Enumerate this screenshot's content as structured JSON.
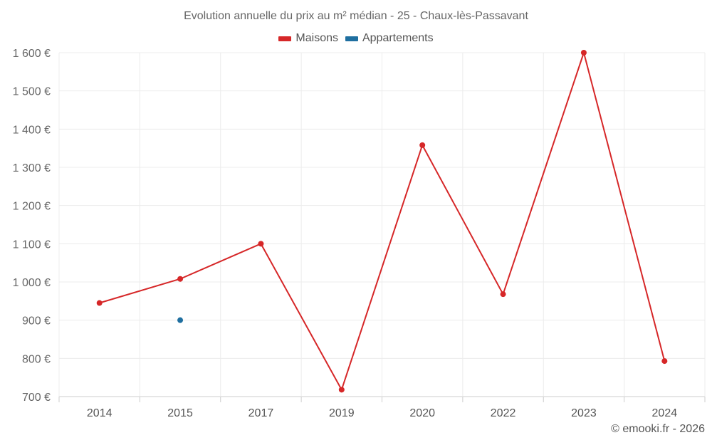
{
  "chart_data": {
    "type": "line",
    "title": "Evolution annuelle du prix au m² médian - 25 - Chaux-lès-Passavant",
    "categories": [
      "2014",
      "2015",
      "2017",
      "2019",
      "2020",
      "2022",
      "2023",
      "2024"
    ],
    "series": [
      {
        "name": "Maisons",
        "color": "#d62728",
        "values": [
          945,
          1008,
          1100,
          718,
          1358,
          968,
          1600,
          793
        ]
      },
      {
        "name": "Appartements",
        "color": "#1f6fa0",
        "values": [
          null,
          900,
          null,
          null,
          null,
          null,
          null,
          null
        ]
      }
    ],
    "y_ticks": [
      700,
      800,
      900,
      1000,
      1100,
      1200,
      1300,
      1400,
      1500,
      1600
    ],
    "y_tick_labels": [
      "700 €",
      "800 €",
      "900 €",
      "1 000 €",
      "1 100 €",
      "1 200 €",
      "1 300 €",
      "1 400 €",
      "1 500 €",
      "1 600 €"
    ],
    "ylim": [
      700,
      1600
    ],
    "xlabel": "",
    "ylabel": "",
    "grid": true,
    "legend_position": "top-center"
  },
  "credit": "© emooki.fr - 2026"
}
